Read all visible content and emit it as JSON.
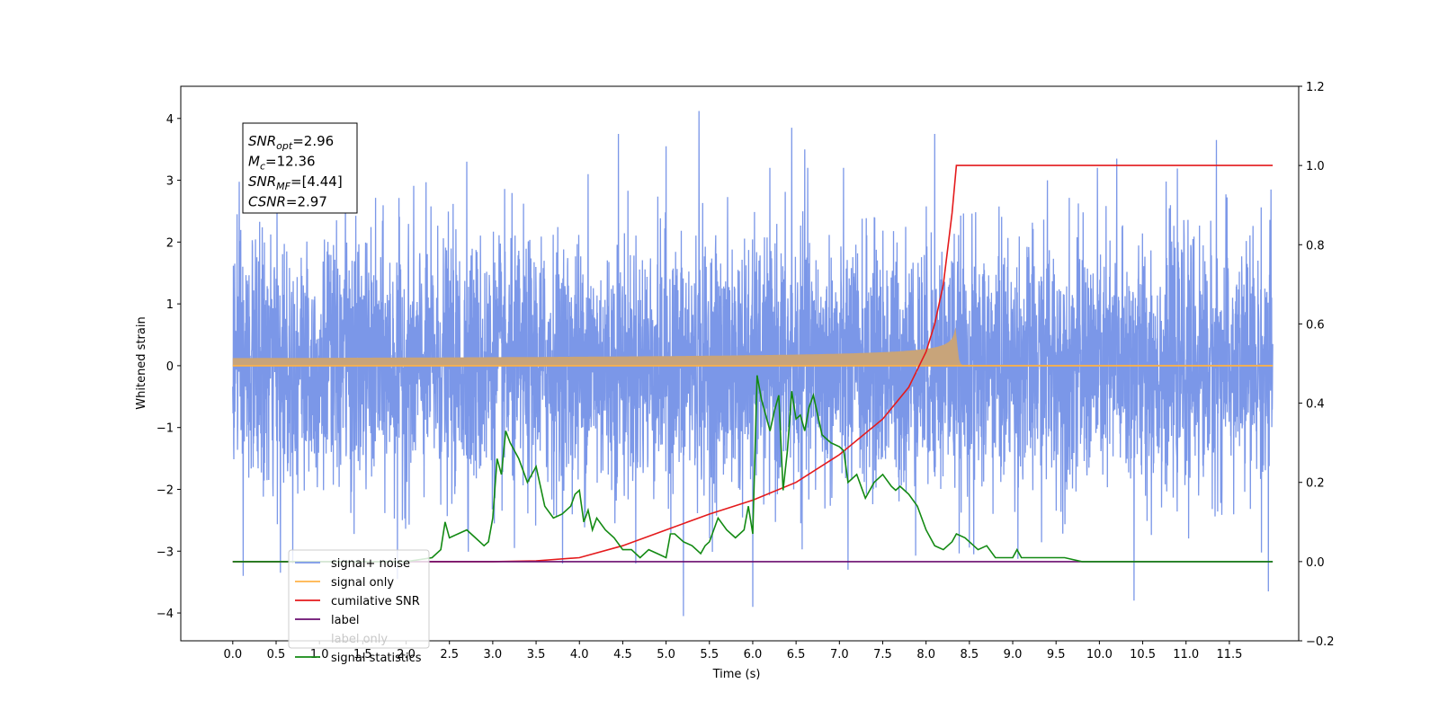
{
  "chart_data": {
    "type": "line",
    "xlabel": "Time (s)",
    "ylabel": "Whitened strain",
    "y2label": "",
    "xlim": [
      -0.6,
      12.3
    ],
    "ylim": [
      -4.45,
      4.52
    ],
    "y2lim": [
      -0.2,
      1.2
    ],
    "x_ticks": [
      0.0,
      0.5,
      1.0,
      1.5,
      2.0,
      2.5,
      3.0,
      3.5,
      4.0,
      4.5,
      5.0,
      5.5,
      6.0,
      6.5,
      7.0,
      7.5,
      8.0,
      8.5,
      9.0,
      9.5,
      10.0,
      10.5,
      11.0,
      11.5
    ],
    "x_tick_labels": [
      "0.0",
      "0.5",
      "1.0",
      "1.5",
      "2.0",
      "2.5",
      "3.0",
      "3.5",
      "4.0",
      "4.5",
      "5.0",
      "5.5",
      "6.0",
      "6.5",
      "7.0",
      "7.5",
      "8.0",
      "8.5",
      "9.0",
      "9.5",
      "10.0",
      "10.5",
      "11.0",
      "11.5"
    ],
    "y_ticks": [
      -4,
      -3,
      -2,
      -1,
      0,
      1,
      2,
      3,
      4
    ],
    "y_tick_labels": [
      "−4",
      "−3",
      "−2",
      "−1",
      "0",
      "1",
      "2",
      "3",
      "4"
    ],
    "y2_ticks": [
      -0.2,
      0.0,
      0.2,
      0.4,
      0.6,
      0.8,
      1.0,
      1.2
    ],
    "y2_tick_labels": [
      "−0.2",
      "0.0",
      "0.2",
      "0.4",
      "0.6",
      "0.8",
      "1.0",
      "1.2"
    ],
    "grid": false,
    "legend_position": "lower-left",
    "series": [
      {
        "name": "signal+ noise",
        "axis": "left",
        "color": "#7b97e8",
        "noise_sigma": 1.0,
        "x_range": [
          0.0,
          12.0
        ],
        "spikes": [
          [
            0.05,
            2.45
          ],
          [
            0.12,
            -3.4
          ],
          [
            0.55,
            -3.35
          ],
          [
            1.3,
            3.05
          ],
          [
            1.9,
            -3.45
          ],
          [
            2.7,
            3.3
          ],
          [
            3.25,
            -2.95
          ],
          [
            4.1,
            3.1
          ],
          [
            4.45,
            3.75
          ],
          [
            5.0,
            3.55
          ],
          [
            5.2,
            -4.05
          ],
          [
            5.38,
            4.12
          ],
          [
            6.0,
            -3.9
          ],
          [
            6.45,
            3.85
          ],
          [
            6.6,
            3.5
          ],
          [
            7.1,
            -3.3
          ],
          [
            8.1,
            3.75
          ],
          [
            8.55,
            -3.05
          ],
          [
            9.4,
            3.0
          ],
          [
            10.2,
            3.35
          ],
          [
            10.4,
            -3.8
          ],
          [
            11.35,
            3.65
          ],
          [
            11.95,
            -3.65
          ],
          [
            11.98,
            2.85
          ]
        ]
      },
      {
        "name": "signal only",
        "axis": "left",
        "color": "#ffb347",
        "fill_color": "#c8a47a",
        "x_range": [
          0.0,
          12.0
        ],
        "chirp": {
          "t_merge": 8.35,
          "peak_amplitude": 0.62,
          "peak_min": -0.45
        }
      },
      {
        "name": "cumilative SNR",
        "axis": "right",
        "color": "#e41a1c",
        "x": [
          0.0,
          3.0,
          3.5,
          4.0,
          4.5,
          5.0,
          5.5,
          6.0,
          6.5,
          7.0,
          7.5,
          7.8,
          8.0,
          8.1,
          8.2,
          8.3,
          8.35,
          8.36,
          12.0
        ],
        "y": [
          0.0,
          0.0,
          0.002,
          0.01,
          0.04,
          0.08,
          0.12,
          0.155,
          0.2,
          0.27,
          0.36,
          0.44,
          0.53,
          0.6,
          0.7,
          0.88,
          1.0,
          1.0,
          1.0
        ]
      },
      {
        "name": "label",
        "axis": "right",
        "color": "#6a0d6f",
        "x": [
          0.0,
          12.0
        ],
        "y": [
          0.0,
          0.0
        ]
      },
      {
        "name": "label only",
        "axis": "right",
        "color": "#6a0d6f",
        "x": [],
        "y": []
      },
      {
        "name": "signal statistics",
        "axis": "right",
        "color": "#138a13",
        "x": [
          0.0,
          1.0,
          2.0,
          2.3,
          2.4,
          2.45,
          2.5,
          2.6,
          2.7,
          2.8,
          2.9,
          2.95,
          3.0,
          3.05,
          3.1,
          3.15,
          3.2,
          3.3,
          3.4,
          3.5,
          3.6,
          3.7,
          3.8,
          3.9,
          3.95,
          4.0,
          4.05,
          4.1,
          4.15,
          4.2,
          4.3,
          4.4,
          4.5,
          4.6,
          4.7,
          4.8,
          4.9,
          5.0,
          5.05,
          5.1,
          5.2,
          5.3,
          5.4,
          5.45,
          5.5,
          5.6,
          5.7,
          5.8,
          5.9,
          5.95,
          6.0,
          6.05,
          6.1,
          6.15,
          6.2,
          6.25,
          6.3,
          6.35,
          6.4,
          6.45,
          6.5,
          6.55,
          6.6,
          6.65,
          6.7,
          6.8,
          6.9,
          7.0,
          7.05,
          7.1,
          7.2,
          7.3,
          7.4,
          7.5,
          7.6,
          7.65,
          7.7,
          7.8,
          7.9,
          8.0,
          8.1,
          8.2,
          8.3,
          8.35,
          8.45,
          8.55,
          8.6,
          8.7,
          8.8,
          9.0,
          9.05,
          9.1,
          9.2,
          9.3,
          9.4,
          9.5,
          9.6,
          9.8,
          10.0,
          10.5,
          12.0
        ],
        "y": [
          0.0,
          0.0,
          0.0,
          0.01,
          0.03,
          0.1,
          0.06,
          0.07,
          0.08,
          0.06,
          0.04,
          0.05,
          0.11,
          0.26,
          0.22,
          0.33,
          0.3,
          0.26,
          0.2,
          0.24,
          0.14,
          0.11,
          0.12,
          0.14,
          0.17,
          0.18,
          0.1,
          0.13,
          0.08,
          0.11,
          0.08,
          0.06,
          0.03,
          0.03,
          0.01,
          0.03,
          0.02,
          0.01,
          0.07,
          0.07,
          0.05,
          0.04,
          0.02,
          0.04,
          0.05,
          0.11,
          0.08,
          0.06,
          0.08,
          0.14,
          0.07,
          0.47,
          0.41,
          0.37,
          0.33,
          0.38,
          0.42,
          0.18,
          0.28,
          0.43,
          0.36,
          0.37,
          0.33,
          0.39,
          0.42,
          0.32,
          0.3,
          0.29,
          0.28,
          0.2,
          0.22,
          0.16,
          0.2,
          0.22,
          0.19,
          0.18,
          0.19,
          0.17,
          0.14,
          0.08,
          0.04,
          0.03,
          0.05,
          0.07,
          0.06,
          0.04,
          0.03,
          0.04,
          0.01,
          0.01,
          0.03,
          0.01,
          0.01,
          0.01,
          0.01,
          0.01,
          0.01,
          0.0,
          0.0,
          0.0,
          0.0
        ]
      }
    ],
    "annotation": {
      "lines": [
        {
          "italic": "SNR",
          "sub": "opt",
          "rest": "=2.96"
        },
        {
          "italic": "M",
          "sub": "c",
          "rest": "=12.36"
        },
        {
          "italic": "SNR",
          "sub": "MF",
          "rest": "=[4.44]"
        },
        {
          "italic": "CSNR",
          "sub": "",
          "rest": "=2.97"
        }
      ]
    }
  }
}
